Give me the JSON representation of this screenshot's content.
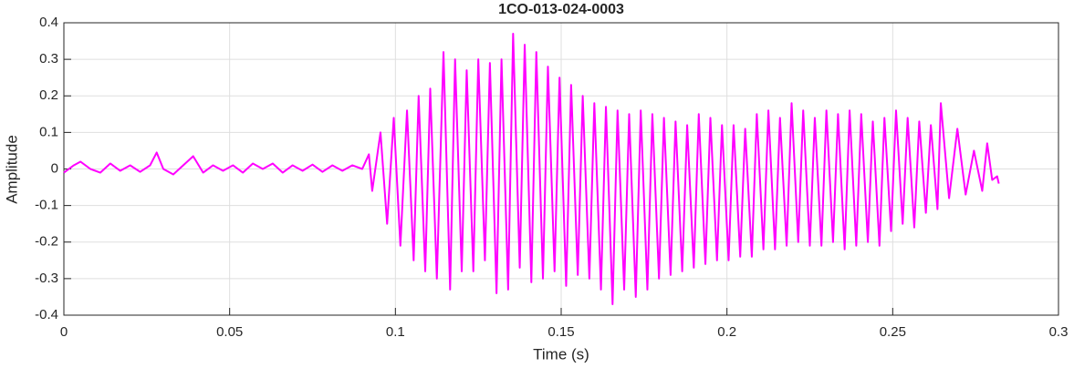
{
  "chart_data": {
    "type": "line",
    "title": "1CO-013-024-0003",
    "x_label": "Time (s)",
    "y_label": "Amplitude",
    "xlim": [
      0,
      0.3
    ],
    "xticks": [
      0,
      0.05,
      0.1,
      0.15,
      0.2,
      0.25,
      0.3
    ],
    "ylim": [
      -0.4,
      0.4
    ],
    "yticks": [
      -0.4,
      -0.3,
      -0.2,
      -0.1,
      0,
      0.1,
      0.2,
      0.3,
      0.4
    ],
    "grid": true,
    "series": [
      {
        "color": "#ff00ff",
        "x": [
          0,
          0.003,
          0.005,
          0.008,
          0.011,
          0.014,
          0.017,
          0.02,
          0.023,
          0.026,
          0.028,
          0.03,
          0.033,
          0.036,
          0.039,
          0.042,
          0.045,
          0.048,
          0.051,
          0.054,
          0.057,
          0.06,
          0.063,
          0.066,
          0.069,
          0.072,
          0.075,
          0.078,
          0.081,
          0.084,
          0.087,
          0.09,
          0.092,
          0.093,
          0.0955,
          0.0975,
          0.0995,
          0.1015,
          0.1035,
          0.1055,
          0.107,
          0.109,
          0.1105,
          0.1125,
          0.1145,
          0.1165,
          0.118,
          0.12,
          0.1215,
          0.1235,
          0.125,
          0.127,
          0.1285,
          0.1305,
          0.132,
          0.134,
          0.1355,
          0.1375,
          0.139,
          0.141,
          0.1425,
          0.1445,
          0.146,
          0.148,
          0.1495,
          0.1515,
          0.153,
          0.155,
          0.1565,
          0.1585,
          0.16,
          0.162,
          0.1635,
          0.1655,
          0.167,
          0.169,
          0.1705,
          0.1725,
          0.174,
          0.176,
          0.1775,
          0.1795,
          0.181,
          0.183,
          0.1845,
          0.1865,
          0.188,
          0.19,
          0.1915,
          0.1935,
          0.195,
          0.197,
          0.1985,
          0.2005,
          0.202,
          0.204,
          0.2055,
          0.2075,
          0.209,
          0.211,
          0.2125,
          0.2145,
          0.216,
          0.218,
          0.2195,
          0.2215,
          0.223,
          0.225,
          0.2265,
          0.2285,
          0.23,
          0.232,
          0.2335,
          0.2355,
          0.237,
          0.239,
          0.2405,
          0.2425,
          0.244,
          0.246,
          0.2475,
          0.2495,
          0.251,
          0.253,
          0.2545,
          0.2565,
          0.258,
          0.26,
          0.2615,
          0.2635,
          0.2645,
          0.267,
          0.2695,
          0.272,
          0.2745,
          0.277,
          0.2785,
          0.28,
          0.2815,
          0.282
        ],
        "values": [
          -0.01,
          0.01,
          0.02,
          0.0,
          -0.01,
          0.015,
          -0.005,
          0.01,
          -0.008,
          0.01,
          0.045,
          0.0,
          -0.015,
          0.01,
          0.035,
          -0.01,
          0.01,
          -0.005,
          0.01,
          -0.01,
          0.015,
          0.0,
          0.015,
          -0.01,
          0.01,
          -0.005,
          0.012,
          -0.008,
          0.01,
          -0.005,
          0.01,
          0.0,
          0.04,
          -0.06,
          0.1,
          -0.15,
          0.14,
          -0.21,
          0.16,
          -0.25,
          0.2,
          -0.28,
          0.22,
          -0.3,
          0.32,
          -0.33,
          0.3,
          -0.28,
          0.27,
          -0.28,
          0.3,
          -0.25,
          0.29,
          -0.34,
          0.3,
          -0.33,
          0.37,
          -0.27,
          0.34,
          -0.31,
          0.32,
          -0.3,
          0.28,
          -0.28,
          0.25,
          -0.32,
          0.23,
          -0.29,
          0.2,
          -0.3,
          0.18,
          -0.33,
          0.17,
          -0.37,
          0.16,
          -0.33,
          0.15,
          -0.35,
          0.16,
          -0.33,
          0.15,
          -0.3,
          0.14,
          -0.29,
          0.13,
          -0.28,
          0.12,
          -0.27,
          0.15,
          -0.26,
          0.14,
          -0.25,
          0.12,
          -0.25,
          0.12,
          -0.24,
          0.11,
          -0.24,
          0.15,
          -0.22,
          0.16,
          -0.22,
          0.14,
          -0.21,
          0.18,
          -0.2,
          0.16,
          -0.21,
          0.14,
          -0.21,
          0.16,
          -0.2,
          0.15,
          -0.22,
          0.16,
          -0.21,
          0.15,
          -0.2,
          0.13,
          -0.21,
          0.14,
          -0.17,
          0.16,
          -0.15,
          0.14,
          -0.16,
          0.13,
          -0.12,
          0.12,
          -0.11,
          0.18,
          -0.08,
          0.11,
          -0.07,
          0.05,
          -0.06,
          0.07,
          -0.03,
          -0.02,
          -0.04
        ]
      }
    ]
  }
}
